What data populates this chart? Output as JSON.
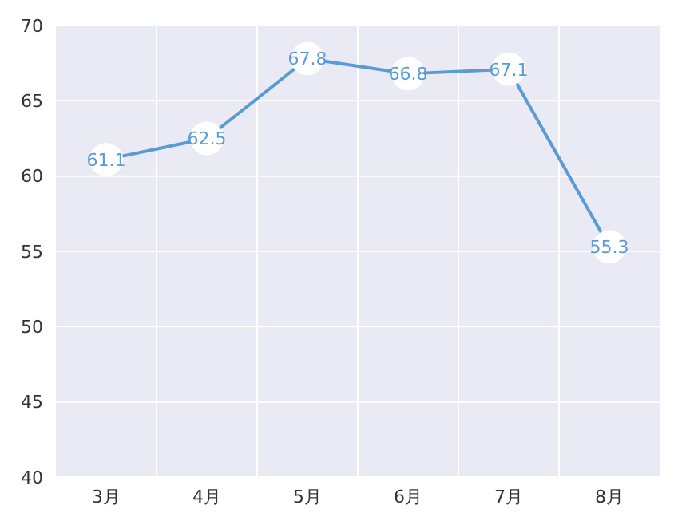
{
  "chart_data": {
    "type": "line",
    "categories": [
      "3月",
      "4月",
      "5月",
      "6月",
      "7月",
      "8月"
    ],
    "series": [
      {
        "color": "#5b9bd5",
        "values": [
          61.1,
          62.5,
          67.8,
          66.8,
          67.1,
          55.3
        ]
      }
    ],
    "ylim": [
      40,
      70
    ],
    "yticks": [
      40,
      45,
      50,
      55,
      60,
      65,
      70
    ],
    "grid": true,
    "marker": "circle",
    "data_labels": true
  }
}
